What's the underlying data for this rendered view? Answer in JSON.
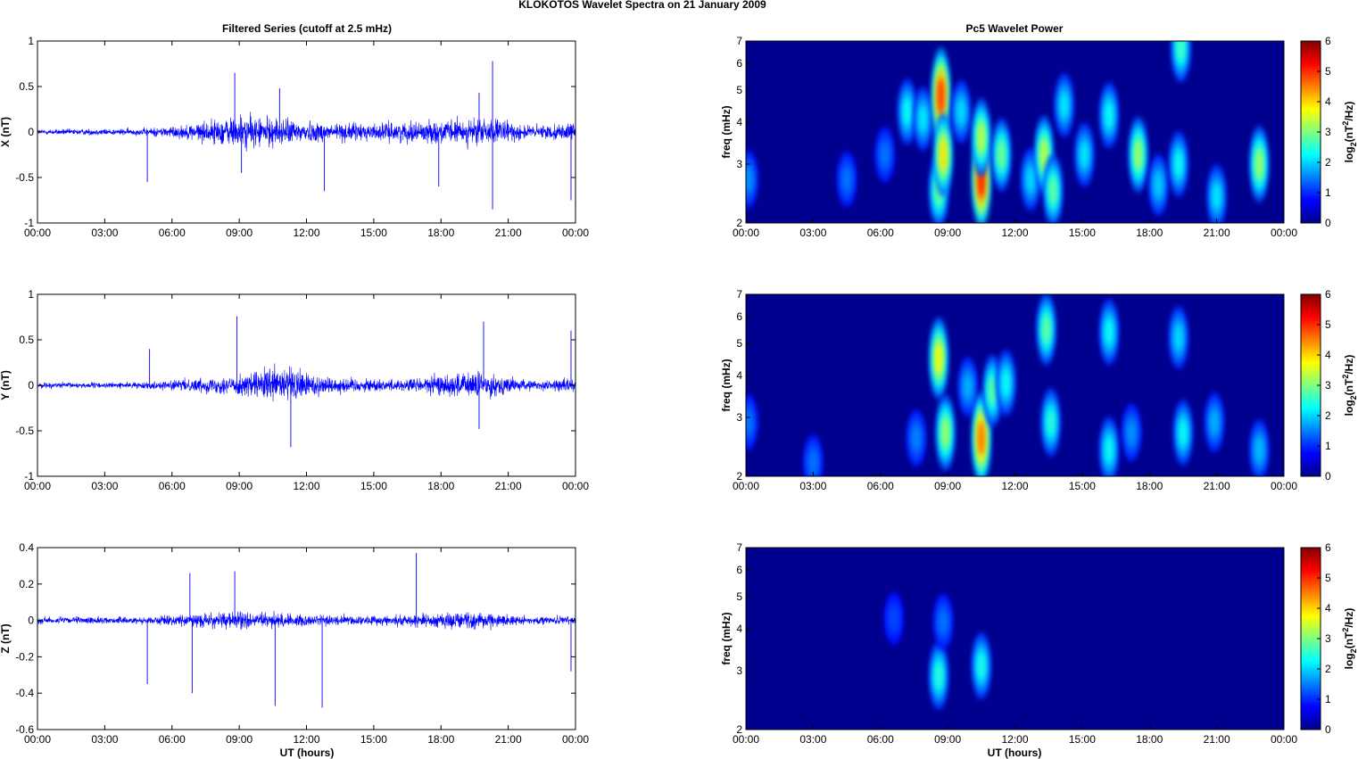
{
  "figure": {
    "suptitle": "KLOKOTOS Wavelet Spectra on 21 January   2009",
    "left_title": "Filtered Series (cutoff at 2.5 mHz)",
    "right_title": "Pc5 Wavelet Power",
    "xlabel": "UT (hours)"
  },
  "chart_data": [
    {
      "type": "line",
      "component": "X",
      "ylabel": "X (nT)",
      "ylim": [
        -1,
        1
      ],
      "yticks": [
        "1",
        "0.5",
        "0",
        "-0.5",
        "-1"
      ],
      "xlim": [
        0,
        24
      ],
      "xticks": [
        "00:00",
        "03:00",
        "06:00",
        "09:00",
        "12:00",
        "15:00",
        "18:00",
        "21:00",
        "00:00"
      ],
      "line_color": "#0000ff",
      "amplitude_envelope": [
        {
          "t": 0,
          "amp": 0.05
        },
        {
          "t": 4.5,
          "amp": 0.06
        },
        {
          "t": 6.5,
          "amp": 0.12
        },
        {
          "t": 9.0,
          "amp": 0.3
        },
        {
          "t": 10.5,
          "amp": 0.25
        },
        {
          "t": 12.5,
          "amp": 0.18
        },
        {
          "t": 15.0,
          "amp": 0.15
        },
        {
          "t": 18.0,
          "amp": 0.2
        },
        {
          "t": 20.0,
          "amp": 0.25
        },
        {
          "t": 22.0,
          "amp": 0.12
        },
        {
          "t": 24,
          "amp": 0.15
        }
      ],
      "spikes": [
        {
          "t": 4.9,
          "v": -0.55
        },
        {
          "t": 8.8,
          "v": 0.65
        },
        {
          "t": 9.1,
          "v": -0.45
        },
        {
          "t": 10.8,
          "v": 0.48
        },
        {
          "t": 12.8,
          "v": -0.65
        },
        {
          "t": 17.9,
          "v": -0.6
        },
        {
          "t": 19.7,
          "v": 0.43
        },
        {
          "t": 20.3,
          "v": 0.78
        },
        {
          "t": 20.3,
          "v": -0.85
        },
        {
          "t": 23.8,
          "v": -0.75
        }
      ]
    },
    {
      "type": "line",
      "component": "Y",
      "ylabel": "Y (nT)",
      "ylim": [
        -1,
        1
      ],
      "yticks": [
        "1",
        "0.5",
        "0",
        "-0.5",
        "-1"
      ],
      "xlim": [
        0,
        24
      ],
      "xticks": [
        "00:00",
        "03:00",
        "06:00",
        "09:00",
        "12:00",
        "15:00",
        "18:00",
        "21:00",
        "00:00"
      ],
      "line_color": "#0000ff",
      "amplitude_envelope": [
        {
          "t": 0,
          "amp": 0.05
        },
        {
          "t": 4.5,
          "amp": 0.05
        },
        {
          "t": 6.5,
          "amp": 0.1
        },
        {
          "t": 9.0,
          "amp": 0.18
        },
        {
          "t": 11.0,
          "amp": 0.35
        },
        {
          "t": 13.0,
          "amp": 0.15
        },
        {
          "t": 16.0,
          "amp": 0.1
        },
        {
          "t": 19.5,
          "amp": 0.25
        },
        {
          "t": 22.0,
          "amp": 0.08
        },
        {
          "t": 24,
          "amp": 0.12
        }
      ],
      "spikes": [
        {
          "t": 5.0,
          "v": 0.4
        },
        {
          "t": 8.9,
          "v": 0.76
        },
        {
          "t": 11.3,
          "v": -0.68
        },
        {
          "t": 19.9,
          "v": 0.7
        },
        {
          "t": 19.7,
          "v": -0.48
        },
        {
          "t": 23.8,
          "v": 0.6
        }
      ]
    },
    {
      "type": "line",
      "component": "Z",
      "ylabel": "Z (nT)",
      "ylim": [
        -0.6,
        0.4
      ],
      "yticks": [
        "0.4",
        "0.2",
        "0",
        "-0.2",
        "-0.4",
        "-0.6"
      ],
      "xlim": [
        0,
        24
      ],
      "xticks": [
        "00:00",
        "03:00",
        "06:00",
        "09:00",
        "12:00",
        "15:00",
        "18:00",
        "21:00",
        "00:00"
      ],
      "line_color": "#0000ff",
      "amplitude_envelope": [
        {
          "t": 0,
          "amp": 0.03
        },
        {
          "t": 4.5,
          "amp": 0.03
        },
        {
          "t": 6.5,
          "amp": 0.05
        },
        {
          "t": 9.0,
          "amp": 0.08
        },
        {
          "t": 11.0,
          "amp": 0.06
        },
        {
          "t": 15.0,
          "amp": 0.04
        },
        {
          "t": 19.5,
          "amp": 0.08
        },
        {
          "t": 22.0,
          "amp": 0.03
        },
        {
          "t": 24,
          "amp": 0.04
        }
      ],
      "spikes": [
        {
          "t": 4.9,
          "v": -0.35
        },
        {
          "t": 6.8,
          "v": 0.26
        },
        {
          "t": 6.9,
          "v": -0.4
        },
        {
          "t": 8.8,
          "v": 0.27
        },
        {
          "t": 10.6,
          "v": -0.47
        },
        {
          "t": 12.7,
          "v": -0.48
        },
        {
          "t": 16.9,
          "v": 0.37
        },
        {
          "t": 23.8,
          "v": -0.28
        }
      ]
    },
    {
      "type": "heatmap",
      "component": "X",
      "ylabel": "freq (mHz)",
      "yscale": "log",
      "ylim": [
        2,
        7
      ],
      "yticks": [
        "7",
        "6",
        "5",
        "4",
        "3",
        "2"
      ],
      "xlim": [
        0,
        24
      ],
      "xticks": [
        "00:00",
        "03:00",
        "06:00",
        "09:00",
        "12:00",
        "15:00",
        "18:00",
        "21:00",
        "00:00"
      ],
      "colorbar": {
        "label": "log2(nT2/Hz)",
        "ticks": [
          "6",
          "5",
          "4",
          "3",
          "2",
          "1",
          "0"
        ],
        "range": [
          0,
          6
        ],
        "colormap": "jet"
      },
      "blobs": [
        {
          "t": 0.1,
          "f": 2.7,
          "power": 1.0
        },
        {
          "t": 4.5,
          "f": 2.7,
          "power": 0.8
        },
        {
          "t": 6.2,
          "f": 3.2,
          "power": 0.8
        },
        {
          "t": 7.2,
          "f": 4.3,
          "power": 1.8
        },
        {
          "t": 7.9,
          "f": 4.1,
          "power": 1.6
        },
        {
          "t": 8.6,
          "f": 2.5,
          "power": 2.5
        },
        {
          "t": 8.7,
          "f": 4.8,
          "power": 4.8
        },
        {
          "t": 8.8,
          "f": 3.2,
          "power": 3.6
        },
        {
          "t": 9.6,
          "f": 4.3,
          "power": 1.5
        },
        {
          "t": 10.5,
          "f": 2.7,
          "power": 5.0
        },
        {
          "t": 10.5,
          "f": 3.6,
          "power": 3.0
        },
        {
          "t": 11.4,
          "f": 3.2,
          "power": 2.5
        },
        {
          "t": 12.7,
          "f": 2.7,
          "power": 1.5
        },
        {
          "t": 13.3,
          "f": 3.2,
          "power": 3.0
        },
        {
          "t": 13.7,
          "f": 2.5,
          "power": 2.4
        },
        {
          "t": 14.2,
          "f": 4.5,
          "power": 1.6
        },
        {
          "t": 15.1,
          "f": 3.2,
          "power": 1.6
        },
        {
          "t": 16.2,
          "f": 4.2,
          "power": 1.8
        },
        {
          "t": 17.5,
          "f": 3.2,
          "power": 2.8
        },
        {
          "t": 18.4,
          "f": 2.6,
          "power": 1.4
        },
        {
          "t": 19.3,
          "f": 3.0,
          "power": 1.8
        },
        {
          "t": 19.4,
          "f": 6.7,
          "power": 2.2
        },
        {
          "t": 21.0,
          "f": 2.4,
          "power": 1.6
        },
        {
          "t": 22.9,
          "f": 3.0,
          "power": 2.8
        }
      ]
    },
    {
      "type": "heatmap",
      "component": "Y",
      "ylabel": "freq (mHz)",
      "yscale": "log",
      "ylim": [
        2,
        7
      ],
      "yticks": [
        "7",
        "6",
        "5",
        "4",
        "3",
        "2"
      ],
      "xlim": [
        0,
        24
      ],
      "xticks": [
        "00:00",
        "03:00",
        "06:00",
        "09:00",
        "12:00",
        "15:00",
        "18:00",
        "21:00",
        "00:00"
      ],
      "colorbar": {
        "label": "log2(nT2/Hz)",
        "ticks": [
          "6",
          "5",
          "4",
          "3",
          "2",
          "1",
          "0"
        ],
        "range": [
          0,
          6
        ],
        "colormap": "jet"
      },
      "blobs": [
        {
          "t": 0.1,
          "f": 2.9,
          "power": 0.8
        },
        {
          "t": 3.0,
          "f": 2.2,
          "power": 0.8
        },
        {
          "t": 7.6,
          "f": 2.6,
          "power": 0.9
        },
        {
          "t": 8.6,
          "f": 4.5,
          "power": 3.4
        },
        {
          "t": 8.9,
          "f": 2.7,
          "power": 2.8
        },
        {
          "t": 9.9,
          "f": 3.7,
          "power": 1.2
        },
        {
          "t": 10.5,
          "f": 2.6,
          "power": 4.4
        },
        {
          "t": 11.0,
          "f": 3.6,
          "power": 2.4
        },
        {
          "t": 11.6,
          "f": 3.8,
          "power": 1.8
        },
        {
          "t": 13.4,
          "f": 5.5,
          "power": 2.4
        },
        {
          "t": 13.6,
          "f": 2.9,
          "power": 2.0
        },
        {
          "t": 16.2,
          "f": 5.4,
          "power": 1.8
        },
        {
          "t": 16.2,
          "f": 2.4,
          "power": 1.8
        },
        {
          "t": 17.2,
          "f": 2.7,
          "power": 1.0
        },
        {
          "t": 19.3,
          "f": 5.2,
          "power": 1.5
        },
        {
          "t": 19.5,
          "f": 2.7,
          "power": 1.8
        },
        {
          "t": 20.9,
          "f": 2.9,
          "power": 1.2
        },
        {
          "t": 22.9,
          "f": 2.4,
          "power": 1.3
        }
      ]
    },
    {
      "type": "heatmap",
      "component": "Z",
      "ylabel": "freq (mHz)",
      "yscale": "log",
      "ylim": [
        2,
        7
      ],
      "yticks": [
        "7",
        "6",
        "5",
        "4",
        "3",
        "2"
      ],
      "xlim": [
        0,
        24
      ],
      "xticks": [
        "00:00",
        "03:00",
        "06:00",
        "09:00",
        "12:00",
        "15:00",
        "18:00",
        "21:00",
        "00:00"
      ],
      "colorbar": {
        "label": "log2(nT2/Hz)",
        "ticks": [
          "6",
          "5",
          "4",
          "3",
          "2",
          "1",
          "0"
        ],
        "range": [
          0,
          6
        ],
        "colormap": "jet"
      },
      "blobs": [
        {
          "t": 6.6,
          "f": 4.3,
          "power": 0.5
        },
        {
          "t": 8.6,
          "f": 2.9,
          "power": 2.0
        },
        {
          "t": 8.8,
          "f": 4.2,
          "power": 0.8
        },
        {
          "t": 10.5,
          "f": 3.1,
          "power": 1.9
        }
      ]
    }
  ]
}
